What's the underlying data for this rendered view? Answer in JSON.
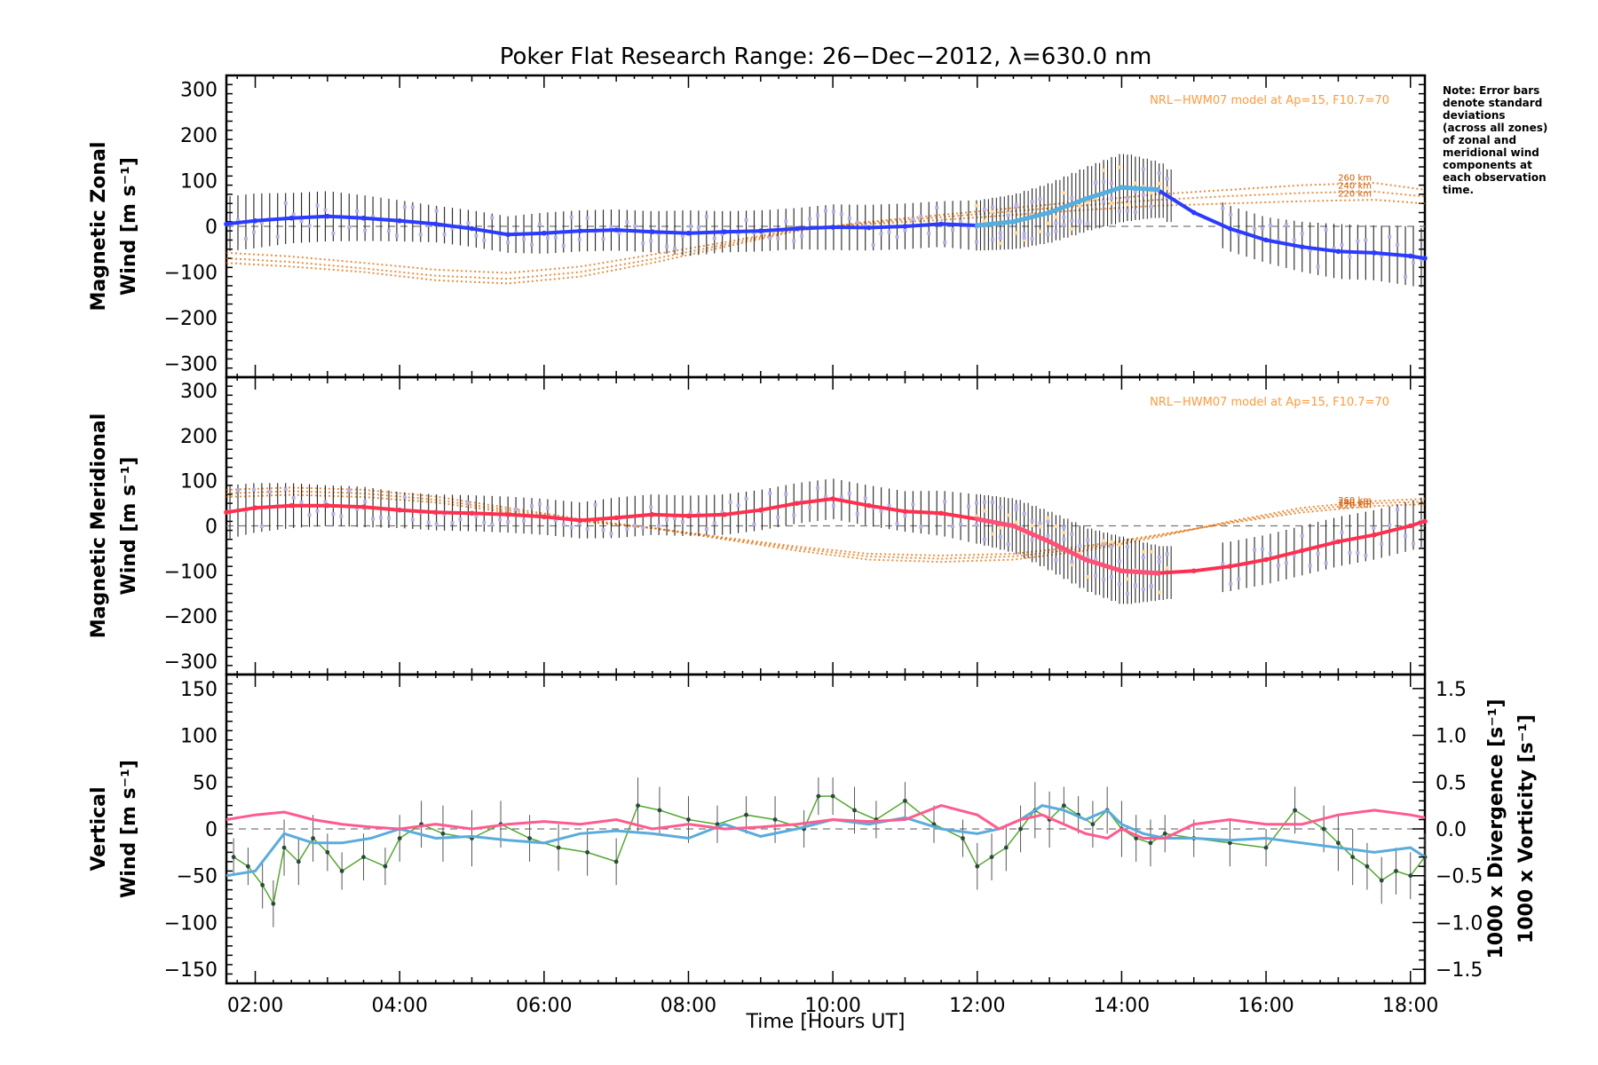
{
  "chart_data": {
    "type": "line",
    "title": "Poker Flat Research Range: 26−Dec−2012, λ=630.0 nm",
    "xlabel": "Time [Hours UT]",
    "xlim": [
      1.6,
      18.2
    ],
    "x_ticks": [
      "02:00",
      "04:00",
      "06:00",
      "08:00",
      "10:00",
      "12:00",
      "14:00",
      "16:00",
      "18:00"
    ],
    "x_tick_values": [
      2,
      4,
      6,
      8,
      10,
      12,
      14,
      16,
      18
    ],
    "note": [
      "Note: Error bars",
      "denote standard",
      "deviations",
      "(across all zones)",
      "of zonal and",
      "meridional wind",
      "components at",
      "each observation",
      "time."
    ],
    "colors": {
      "zonal_fit": "#2b3bff",
      "zonal_fit_dense": "#55aee0",
      "meridional_fit": "#ff2f4f",
      "meridional_fit_dense": "#ff5078",
      "model": "#e06a00",
      "model_note": "#ff9a3c",
      "errorbar": "#222222",
      "zone_scatter": "#b7b0e6",
      "zone_scatter_alt": "#ffd89a",
      "vertical": "#55a830",
      "divergence": "#5aacdc",
      "vorticity": "#ff5b8e"
    },
    "panels": [
      {
        "id": "zonal",
        "ylabel_lines": [
          "Magnetic Zonal",
          "Wind [m s⁻¹]"
        ],
        "ylim": [
          -330,
          330
        ],
        "y_ticks": [
          300,
          200,
          100,
          0,
          -100,
          -200,
          -300
        ],
        "model_note": "NRL−HWM07 model at Ap=15, F10.7=70",
        "model_altitudes": [
          "260 km",
          "240 km",
          "220 km"
        ],
        "model_curves": {
          "x": [
            1.6,
            2.5,
            3.5,
            4.5,
            5.5,
            6.5,
            7.5,
            8.5,
            9.5,
            10.5,
            11.5,
            12.5,
            13.5,
            14.5,
            15.5,
            16.5,
            17.5,
            18.2
          ],
          "260 km": [
            -80,
            -88,
            -100,
            -118,
            -125,
            -110,
            -80,
            -45,
            -10,
            10,
            25,
            40,
            55,
            70,
            80,
            90,
            95,
            80
          ],
          "240 km": [
            -70,
            -78,
            -92,
            -108,
            -115,
            -100,
            -72,
            -40,
            -8,
            8,
            20,
            33,
            46,
            58,
            66,
            73,
            76,
            65
          ],
          "220 km": [
            -58,
            -66,
            -80,
            -95,
            -102,
            -88,
            -62,
            -35,
            -6,
            5,
            14,
            25,
            36,
            45,
            50,
            55,
            58,
            50
          ]
        },
        "fit": {
          "x": [
            1.6,
            2.0,
            2.5,
            3.0,
            3.5,
            4.0,
            4.5,
            5.0,
            5.5,
            6.0,
            6.5,
            7.0,
            7.5,
            8.0,
            8.5,
            9.0,
            9.5,
            10.0,
            10.5,
            11.0,
            11.5,
            12.0,
            12.5,
            13.0,
            13.5,
            14.0,
            14.5,
            15.0,
            15.5,
            16.0,
            16.5,
            17.0,
            17.5,
            18.0,
            18.2
          ],
          "y": [
            5,
            12,
            18,
            22,
            18,
            12,
            5,
            -5,
            -18,
            -15,
            -10,
            -8,
            -12,
            -15,
            -12,
            -10,
            -5,
            -2,
            -3,
            0,
            5,
            2,
            10,
            30,
            60,
            85,
            80,
            30,
            -5,
            -30,
            -45,
            -55,
            -58,
            -65,
            -70
          ]
        },
        "errorbar_std": [
          60,
          60,
          55,
          55,
          50,
          45,
          40,
          40,
          40,
          45,
          45,
          45,
          45,
          50,
          45,
          45,
          45,
          50,
          50,
          50,
          50,
          55,
          60,
          65,
          70,
          75,
          60,
          50,
          50,
          50,
          55,
          60,
          60,
          65,
          65
        ]
      },
      {
        "id": "meridional",
        "ylabel_lines": [
          "Magnetic Meridional",
          "Wind [m s⁻¹]"
        ],
        "ylim": [
          -330,
          330
        ],
        "y_ticks": [
          300,
          200,
          100,
          0,
          -100,
          -200,
          -300
        ],
        "model_note": "NRL−HWM07 model at Ap=15, F10.7=70",
        "model_altitudes": [
          "260 km",
          "240 km",
          "220 km"
        ],
        "model_curves": {
          "x": [
            1.6,
            2.5,
            3.5,
            4.5,
            5.5,
            6.5,
            7.5,
            8.5,
            9.5,
            10.5,
            11.5,
            12.5,
            13.5,
            14.5,
            15.5,
            16.5,
            17.5,
            18.2
          ],
          "260 km": [
            80,
            85,
            80,
            65,
            40,
            15,
            -5,
            -30,
            -55,
            -75,
            -80,
            -75,
            -55,
            -25,
            10,
            40,
            55,
            60
          ],
          "240 km": [
            72,
            77,
            72,
            58,
            35,
            12,
            -5,
            -28,
            -50,
            -68,
            -73,
            -68,
            -50,
            -22,
            8,
            35,
            50,
            54
          ],
          "220 km": [
            64,
            69,
            64,
            52,
            30,
            10,
            -5,
            -26,
            -46,
            -62,
            -66,
            -62,
            -45,
            -20,
            6,
            30,
            44,
            48
          ]
        },
        "fit": {
          "x": [
            1.6,
            2.0,
            2.5,
            3.0,
            3.5,
            4.0,
            4.5,
            5.0,
            5.5,
            6.0,
            6.5,
            7.0,
            7.5,
            8.0,
            8.5,
            9.0,
            9.5,
            10.0,
            10.5,
            11.0,
            11.5,
            12.0,
            12.5,
            13.0,
            13.5,
            14.0,
            14.5,
            15.0,
            15.5,
            16.0,
            16.5,
            17.0,
            17.5,
            18.0,
            18.2
          ],
          "y": [
            30,
            40,
            45,
            45,
            42,
            35,
            30,
            28,
            25,
            20,
            12,
            18,
            25,
            22,
            25,
            35,
            50,
            60,
            45,
            32,
            28,
            15,
            0,
            -35,
            -75,
            -100,
            -105,
            -100,
            -90,
            -75,
            -55,
            -35,
            -20,
            0,
            10
          ]
        },
        "errorbar_std": [
          60,
          55,
          50,
          45,
          45,
          40,
          40,
          40,
          40,
          40,
          40,
          45,
          45,
          45,
          45,
          45,
          45,
          45,
          45,
          45,
          50,
          55,
          60,
          65,
          70,
          75,
          60,
          55,
          55,
          55,
          55,
          55,
          55,
          55,
          55
        ]
      },
      {
        "id": "vertical",
        "ylabel_lines": [
          "Vertical",
          "Wind [m s⁻¹]"
        ],
        "ylim": [
          -165,
          165
        ],
        "y_ticks": [
          150,
          100,
          50,
          0,
          -50,
          -100,
          -150
        ],
        "right_ylim": [
          -1.65,
          1.65
        ],
        "right_y_ticks": [
          "1.5",
          "1.0",
          "0.5",
          "0.0",
          "−0.5",
          "−1.0",
          "−1.5"
        ],
        "right_y_tick_values": [
          1.5,
          1.0,
          0.5,
          0.0,
          -0.5,
          -1.0,
          -1.5
        ],
        "right_label_divergence": "1000 x Divergence [s⁻¹]",
        "right_label_vorticity": "1000 x Vorticity [s⁻¹]",
        "series": [
          {
            "name": "Vertical",
            "x": [
              1.7,
              1.9,
              2.1,
              2.25,
              2.4,
              2.6,
              2.8,
              3.0,
              3.2,
              3.5,
              3.8,
              4.0,
              4.3,
              4.6,
              5.0,
              5.4,
              5.8,
              6.2,
              6.6,
              7.0,
              7.3,
              7.6,
              8.0,
              8.4,
              8.8,
              9.2,
              9.6,
              9.8,
              10.0,
              10.3,
              10.6,
              11.0,
              11.4,
              11.8,
              12.0,
              12.2,
              12.4,
              12.6,
              12.8,
              13.0,
              13.2,
              13.4,
              13.6,
              13.8,
              14.0,
              14.2,
              14.4,
              14.6,
              15.0,
              15.5,
              16.0,
              16.4,
              16.8,
              17.0,
              17.2,
              17.4,
              17.6,
              17.8,
              18.0,
              18.2
            ],
            "y": [
              -30,
              -40,
              -60,
              -80,
              -20,
              -35,
              -10,
              -25,
              -45,
              -30,
              -40,
              -10,
              5,
              -5,
              -10,
              5,
              -10,
              -20,
              -25,
              -35,
              25,
              20,
              10,
              5,
              15,
              10,
              0,
              35,
              35,
              20,
              10,
              30,
              5,
              -10,
              -40,
              -30,
              -20,
              0,
              20,
              10,
              25,
              15,
              5,
              20,
              0,
              -10,
              -15,
              -5,
              -10,
              -15,
              -20,
              20,
              0,
              -15,
              -30,
              -40,
              -55,
              -45,
              -50,
              -30
            ]
          },
          {
            "name": "Divergence",
            "x": [
              1.6,
              2.0,
              2.4,
              2.8,
              3.2,
              3.6,
              4.0,
              4.5,
              5.0,
              5.5,
              6.0,
              6.5,
              7.0,
              7.5,
              8.0,
              8.5,
              9.0,
              9.5,
              10.0,
              10.5,
              11.0,
              11.5,
              12.0,
              12.3,
              12.6,
              12.9,
              13.2,
              13.5,
              13.8,
              14.0,
              14.3,
              14.6,
              15.0,
              15.5,
              16.0,
              16.5,
              17.0,
              17.5,
              18.0,
              18.2
            ],
            "y": [
              -0.5,
              -0.45,
              -0.05,
              -0.15,
              -0.15,
              -0.1,
              0.0,
              -0.1,
              -0.08,
              -0.12,
              -0.15,
              -0.05,
              -0.02,
              -0.05,
              -0.1,
              0.05,
              -0.08,
              0.0,
              0.1,
              0.05,
              0.12,
              0.0,
              -0.05,
              0.0,
              0.1,
              0.25,
              0.2,
              0.1,
              0.2,
              0.05,
              -0.05,
              -0.1,
              -0.1,
              -0.12,
              -0.1,
              -0.15,
              -0.2,
              -0.25,
              -0.2,
              -0.3
            ]
          },
          {
            "name": "Vorticity",
            "x": [
              1.6,
              2.0,
              2.4,
              2.8,
              3.2,
              3.6,
              4.0,
              4.5,
              5.0,
              5.5,
              6.0,
              6.5,
              7.0,
              7.5,
              8.0,
              8.5,
              9.0,
              9.5,
              10.0,
              10.5,
              11.0,
              11.5,
              12.0,
              12.3,
              12.6,
              12.9,
              13.2,
              13.5,
              13.8,
              14.0,
              14.3,
              14.6,
              15.0,
              15.5,
              16.0,
              16.5,
              17.0,
              17.5,
              18.0,
              18.2
            ],
            "y": [
              0.1,
              0.15,
              0.18,
              0.1,
              0.05,
              0.02,
              0.0,
              0.05,
              0.0,
              0.05,
              0.08,
              0.05,
              0.1,
              0.0,
              0.05,
              0.0,
              0.02,
              0.05,
              0.1,
              0.08,
              0.1,
              0.25,
              0.15,
              0.0,
              0.1,
              0.15,
              0.05,
              -0.05,
              -0.1,
              0.0,
              -0.1,
              -0.1,
              0.05,
              0.1,
              0.05,
              0.05,
              0.15,
              0.2,
              0.15,
              0.12
            ]
          }
        ],
        "errorbar_std": [
          20,
          20,
          25,
          25,
          30,
          25,
          25,
          20,
          20,
          25,
          20,
          25,
          25,
          30,
          30,
          25,
          25,
          25,
          25,
          25,
          30,
          25,
          25,
          20,
          20,
          25,
          20,
          20,
          20,
          25,
          20,
          20,
          20,
          20,
          25,
          25,
          25,
          25,
          30,
          30
        ]
      }
    ]
  }
}
